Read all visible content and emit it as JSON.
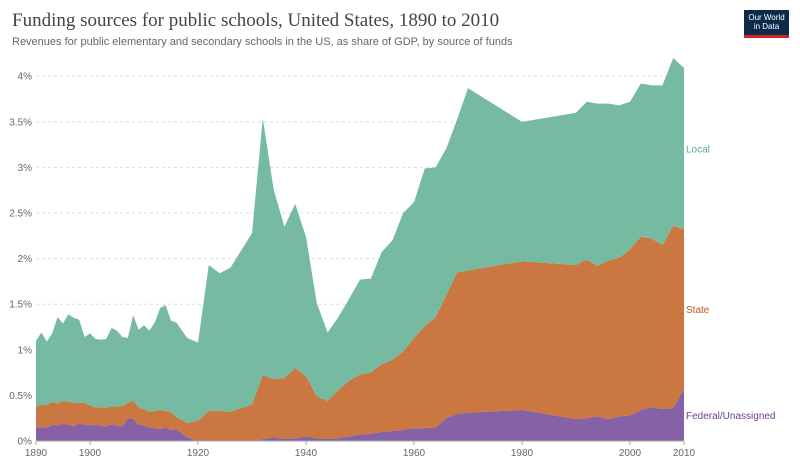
{
  "header": {
    "title": "Funding sources for public schools, United States, 1890 to 2010",
    "subtitle": "Revenues for public elementary and secondary schools in the US, as share of GDP, by source of funds",
    "logo_line1": "Our World",
    "logo_line2": "in Data"
  },
  "colors": {
    "federal": "#6d3e91",
    "state": "#c05917",
    "local": "#58ac8c"
  },
  "chart_data": {
    "type": "area",
    "stacked": true,
    "title": "Funding sources for public schools, United States, 1890 to 2010",
    "xlabel": "",
    "ylabel": "",
    "xlim": [
      1890,
      2010
    ],
    "ylim": [
      0,
      4.2
    ],
    "y_ticks": [
      0,
      0.5,
      1,
      1.5,
      2,
      2.5,
      3,
      3.5,
      4
    ],
    "y_tick_labels": [
      "0%",
      "0.5%",
      "1%",
      "1.5%",
      "2%",
      "2.5%",
      "3%",
      "3.5%",
      "4%"
    ],
    "x_ticks": [
      1890,
      1900,
      1920,
      1940,
      1960,
      1980,
      2000,
      2010
    ],
    "grid": true,
    "legend": "inline-right",
    "x": [
      1890,
      1891,
      1892,
      1893,
      1894,
      1895,
      1896,
      1897,
      1898,
      1899,
      1900,
      1901,
      1902,
      1903,
      1904,
      1905,
      1906,
      1907,
      1908,
      1909,
      1910,
      1911,
      1912,
      1913,
      1914,
      1915,
      1916,
      1918,
      1920,
      1922,
      1924,
      1926,
      1930,
      1932,
      1934,
      1936,
      1938,
      1940,
      1942,
      1944,
      1946,
      1948,
      1950,
      1952,
      1954,
      1956,
      1958,
      1960,
      1962,
      1964,
      1966,
      1968,
      1970,
      1980,
      1990,
      1992,
      1994,
      1996,
      1998,
      2000,
      2002,
      2004,
      2006,
      2008,
      2010
    ],
    "series": [
      {
        "name": "Federal/Unassigned",
        "values": [
          0.15,
          0.15,
          0.15,
          0.18,
          0.17,
          0.19,
          0.18,
          0.16,
          0.19,
          0.18,
          0.17,
          0.18,
          0.17,
          0.16,
          0.18,
          0.17,
          0.16,
          0.25,
          0.24,
          0.18,
          0.17,
          0.15,
          0.14,
          0.13,
          0.15,
          0.12,
          0.13,
          0.04,
          0.0,
          0.0,
          0.0,
          0.0,
          0.0,
          0.02,
          0.04,
          0.02,
          0.03,
          0.05,
          0.03,
          0.02,
          0.03,
          0.05,
          0.07,
          0.08,
          0.1,
          0.11,
          0.12,
          0.14,
          0.14,
          0.15,
          0.25,
          0.3,
          0.31,
          0.34,
          0.24,
          0.25,
          0.27,
          0.24,
          0.27,
          0.28,
          0.34,
          0.37,
          0.35,
          0.36,
          0.57
        ]
      },
      {
        "name": "State",
        "values": [
          0.23,
          0.25,
          0.24,
          0.25,
          0.24,
          0.25,
          0.25,
          0.26,
          0.23,
          0.24,
          0.22,
          0.19,
          0.2,
          0.2,
          0.2,
          0.21,
          0.22,
          0.17,
          0.2,
          0.19,
          0.18,
          0.17,
          0.19,
          0.21,
          0.18,
          0.2,
          0.13,
          0.16,
          0.22,
          0.33,
          0.33,
          0.32,
          0.4,
          0.7,
          0.64,
          0.67,
          0.77,
          0.66,
          0.46,
          0.42,
          0.53,
          0.61,
          0.66,
          0.67,
          0.74,
          0.78,
          0.86,
          0.99,
          1.12,
          1.21,
          1.35,
          1.55,
          1.56,
          1.63,
          1.69,
          1.74,
          1.65,
          1.74,
          1.74,
          1.82,
          1.9,
          1.85,
          1.8,
          2.0,
          1.75
        ]
      },
      {
        "name": "Local",
        "values": [
          0.72,
          0.79,
          0.7,
          0.75,
          0.95,
          0.85,
          0.96,
          0.93,
          0.91,
          0.72,
          0.79,
          0.75,
          0.74,
          0.76,
          0.86,
          0.83,
          0.76,
          0.71,
          0.94,
          0.85,
          0.92,
          0.89,
          0.97,
          1.12,
          1.16,
          1.0,
          1.04,
          0.93,
          0.86,
          1.6,
          1.51,
          1.58,
          1.88,
          2.82,
          2.08,
          1.66,
          1.8,
          1.53,
          1.02,
          0.75,
          0.8,
          0.9,
          1.04,
          1.03,
          1.23,
          1.31,
          1.52,
          1.49,
          1.73,
          1.64,
          1.61,
          1.68,
          2.0,
          1.53,
          1.67,
          1.73,
          1.78,
          1.72,
          1.67,
          1.62,
          1.68,
          1.68,
          1.75,
          1.84,
          1.77
        ]
      }
    ]
  }
}
